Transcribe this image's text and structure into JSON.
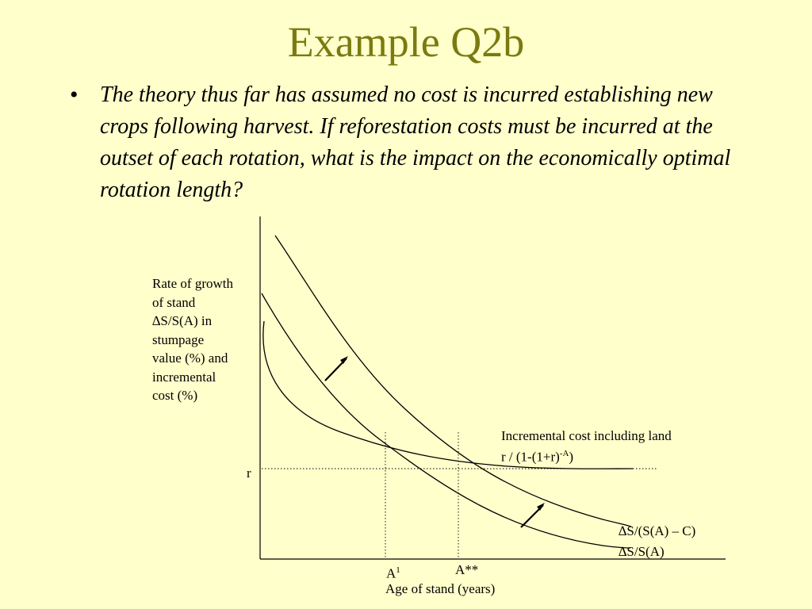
{
  "slide": {
    "title": "Example Q2b",
    "bullet_symbol": "•",
    "bullet_text": "The theory thus far has assumed no cost is incurred establishing new crops following harvest. If reforestation costs must be incurred at the outset of each rotation, what is the impact on the economically optimal rotation length?"
  },
  "diagram": {
    "y_axis_label": [
      "Rate of growth",
      "of stand",
      "∆S/S(A) in",
      "stumpage",
      "value (%) and",
      "incremental",
      "cost (%)"
    ],
    "x_axis_label": "Age of stand (years)",
    "r_label": "r",
    "a1_label": "A",
    "a1_sup": "1",
    "a2_label": "A**",
    "cost_curve_label_line1": "Incremental cost including land",
    "cost_curve_label_line2_pre": "r / (1-(1+r)",
    "cost_curve_label_sup": "-A",
    "cost_curve_label_line2_post": ")",
    "curve_upper_label": "∆S/(S(A) – C)",
    "curve_lower_label": "∆S/S(A)",
    "colors": {
      "background": "#ffffcc",
      "title": "#7a7a10",
      "lines": "#000000"
    }
  }
}
